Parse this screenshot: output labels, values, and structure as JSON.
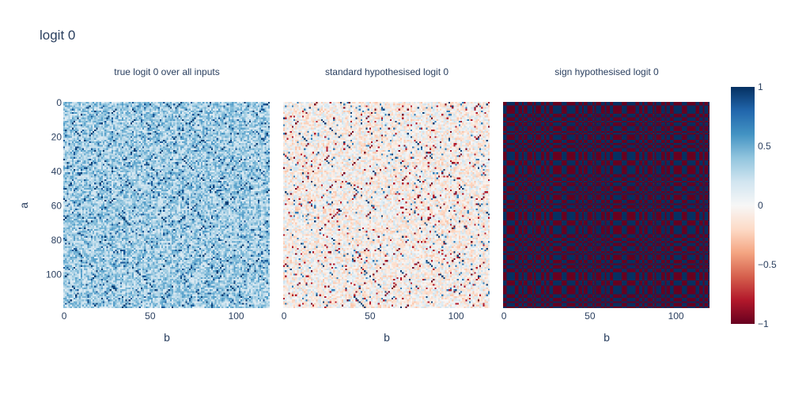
{
  "figure": {
    "title": "logit 0"
  },
  "colorscale": {
    "name": "RdBu",
    "stops": [
      "#67001f",
      "#b2182b",
      "#d6604d",
      "#f4a582",
      "#fddbc7",
      "#f7f7f7",
      "#d1e5f0",
      "#92c5de",
      "#4393c3",
      "#2166ac",
      "#053061"
    ],
    "min": -1,
    "max": 1,
    "tick_values": [
      1,
      0.5,
      0,
      -0.5,
      -1
    ],
    "tick_labels": [
      "1",
      "0.5",
      "0",
      "−0.5",
      "−1"
    ]
  },
  "chart_data": [
    {
      "type": "heatmap",
      "title": "true logit 0 over all inputs",
      "xlabel": "b",
      "ylabel": "a",
      "x_range": [
        0,
        119
      ],
      "y_range": [
        0,
        119
      ],
      "x_ticks": [
        0,
        50,
        100
      ],
      "y_ticks": [
        0,
        20,
        40,
        60,
        80,
        100
      ],
      "z_range": [
        -1,
        1
      ],
      "pattern": "mostly positive values (about 0.1–0.6) with scattered strong positive diagonals"
    },
    {
      "type": "heatmap",
      "title": "standard hypothesised logit 0",
      "xlabel": "b",
      "ylabel": "",
      "x_range": [
        0,
        119
      ],
      "y_range": [
        0,
        119
      ],
      "x_ticks": [
        0,
        50,
        100
      ],
      "z_range": [
        -1,
        1
      ],
      "pattern": "values near zero (about −0.3–0.3) with sparse strong negative and positive cells along diagonals"
    },
    {
      "type": "heatmap",
      "title": "sign hypothesised logit 0",
      "xlabel": "b",
      "ylabel": "",
      "x_range": [
        0,
        119
      ],
      "y_range": [
        0,
        119
      ],
      "x_ticks": [
        0,
        50,
        100
      ],
      "z_range": [
        -1,
        1
      ],
      "pattern": "binary ±1 checkerboard"
    }
  ]
}
